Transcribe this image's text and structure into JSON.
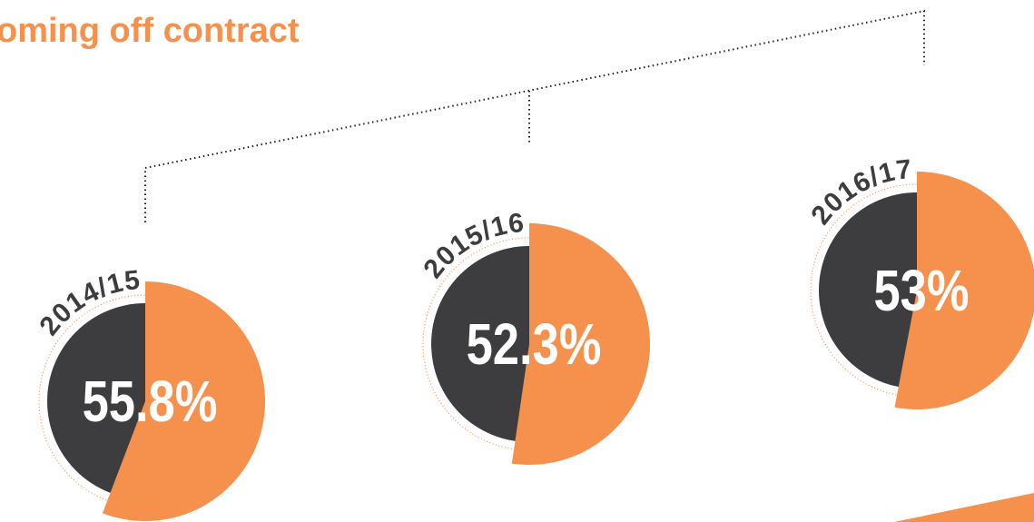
{
  "heading": "oming off contract",
  "chart_data": [
    {
      "type": "pie",
      "title": "2014/15",
      "values": [
        55.8
      ],
      "value_labels": [
        "55.8%"
      ],
      "color": "#f5914c"
    },
    {
      "type": "pie",
      "title": "2015/16",
      "values": [
        52.3
      ],
      "value_labels": [
        "52.3%"
      ],
      "color": "#f5914c"
    },
    {
      "type": "pie",
      "title": "2016/17",
      "values": [
        53
      ],
      "value_labels": [
        "53%"
      ],
      "color": "#f5914c"
    }
  ]
}
